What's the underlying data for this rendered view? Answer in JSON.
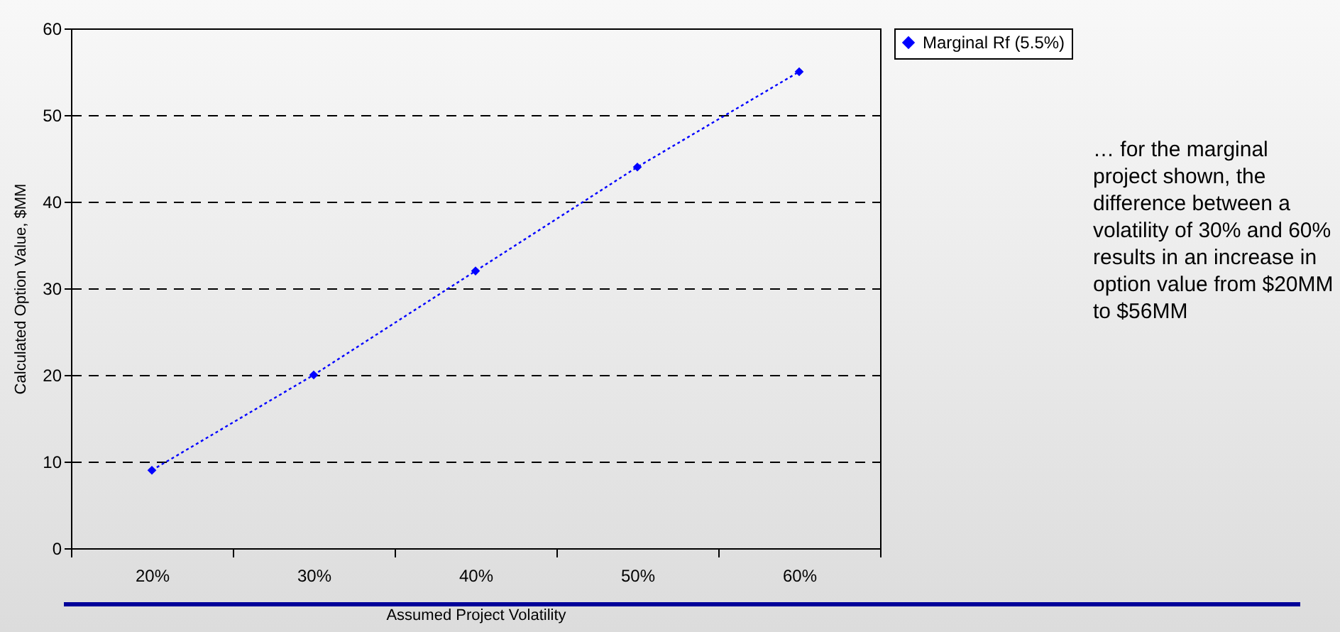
{
  "chart_data": {
    "type": "line",
    "xlabel": "Assumed Project Volatility",
    "ylabel": "Calculated Option Value, $MM",
    "categories": [
      "20%",
      "30%",
      "40%",
      "50%",
      "60%"
    ],
    "series": [
      {
        "name": "Marginal Rf (5.5%)",
        "color": "#0000ff",
        "values": [
          9,
          20,
          32,
          44,
          55
        ]
      }
    ],
    "ylim": [
      0,
      60
    ],
    "yticks": [
      0,
      10,
      20,
      30,
      40,
      50,
      60
    ],
    "grid": "y",
    "legend": "top right",
    "marker": "diamond",
    "line_style": "dotted",
    "annotations": [
      "… for the marginal project shown, the difference between a volatility of 30% and 60% results in an increase in option value from $20MM to $56MM"
    ]
  }
}
